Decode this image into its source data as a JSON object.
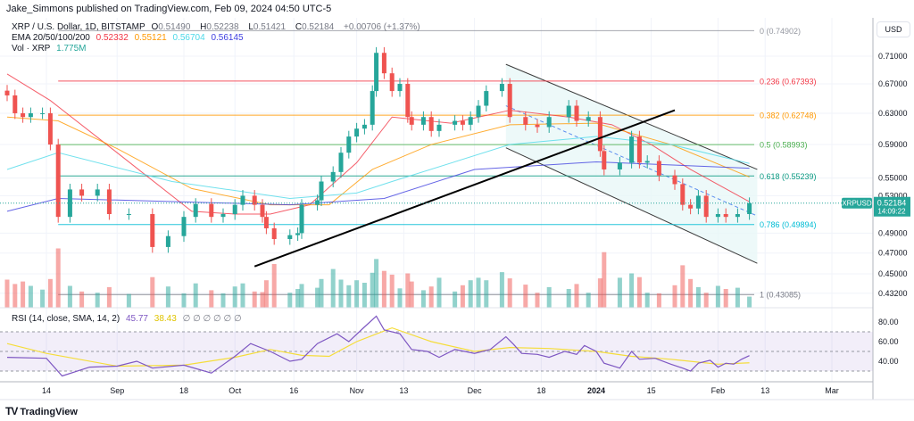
{
  "header": {
    "published": "Jake_Simmons published on TradingView.com, Feb 09, 2024 04:50 UTC-5",
    "symbol": "XRP / U.S. Dollar, 1D, BITSTAMP",
    "o_label": "O",
    "o": "0.51490",
    "h_label": "H",
    "h": "0.52238",
    "l_label": "L",
    "l": "0.51421",
    "c_label": "C",
    "c": "0.52184",
    "change": "+0.00706 (+1.37%)",
    "ema_label": "EMA 20/50/100/200",
    "ema20": "0.52332",
    "ema50": "0.55121",
    "ema100": "0.56704",
    "ema200": "0.56145",
    "vol_label": "Vol · XRP",
    "vol": "1.775M",
    "rsi_label": "RSI (14, close, SMA, 14, 2)",
    "rsi": "45.77",
    "rsi_sma": "38.43",
    "rsi_extra": "∅ ∅ ∅ ∅ ∅ ∅"
  },
  "price_axis": {
    "currency": "USD",
    "symbol_tag": "XRPUSD",
    "last_price": "0.52184",
    "countdown": "14:09:22"
  },
  "footer": {
    "brand": "TradingView",
    "brand_icon": "tradingview-logo-icon"
  },
  "colors": {
    "up": "#26a69a",
    "down": "#ef5350",
    "ema20": "#f23645",
    "ema50": "#ff9800",
    "ema100": "#4dd9e8",
    "ema200": "#3f3fe0",
    "rsi": "#7e57c2",
    "rsi_sma": "#f5dd3a",
    "channel_fill": "#e8f8f8"
  },
  "chart_data": {
    "type": "candlestick",
    "scale": "log",
    "ylim": [
      0.42,
      0.76
    ],
    "yticks": [
      "0.71000",
      "0.67000",
      "0.63000",
      "0.59000",
      "0.55000",
      "0.53000",
      "0.49000",
      "0.47000",
      "0.45000",
      "0.43200"
    ],
    "xticks": [
      {
        "label": "14",
        "date": "2023-08-14"
      },
      {
        "label": "Sep",
        "date": "2023-09-01"
      },
      {
        "label": "18",
        "date": "2023-09-18"
      },
      {
        "label": "Oct",
        "date": "2023-10-01"
      },
      {
        "label": "16",
        "date": "2023-10-16"
      },
      {
        "label": "Nov",
        "date": "2023-11-01"
      },
      {
        "label": "13",
        "date": "2023-11-13"
      },
      {
        "label": "Dec",
        "date": "2023-12-01"
      },
      {
        "label": "18",
        "date": "2023-12-18"
      },
      {
        "label": "2024",
        "date": "2024-01-01"
      },
      {
        "label": "15",
        "date": "2024-01-15"
      },
      {
        "label": "Feb",
        "date": "2024-02-01"
      },
      {
        "label": "13",
        "date": "2024-02-13"
      },
      {
        "label": "Mar",
        "date": "2024-03-01"
      }
    ],
    "candles": [
      [
        "2023-08-04",
        0.654,
        4.5
      ],
      [
        "2023-08-06",
        0.63,
        3.8
      ],
      [
        "2023-08-08",
        0.625,
        4.2
      ],
      [
        "2023-08-10",
        0.63,
        3.5
      ],
      [
        "2023-08-13",
        0.63,
        2.9
      ],
      [
        "2023-08-15",
        0.59,
        4.6
      ],
      [
        "2023-08-17",
        0.507,
        9.5
      ],
      [
        "2023-08-20",
        0.537,
        3.5
      ],
      [
        "2023-08-23",
        0.53,
        2.6
      ],
      [
        "2023-08-27",
        0.537,
        2.4
      ],
      [
        "2023-08-30",
        0.51,
        3.3
      ],
      [
        "2023-09-04",
        0.51,
        2.2
      ],
      [
        "2023-09-10",
        0.476,
        4.9
      ],
      [
        "2023-09-14",
        0.487,
        3.4
      ],
      [
        "2023-09-18",
        0.507,
        2.3
      ],
      [
        "2023-09-21",
        0.521,
        3.9
      ],
      [
        "2023-09-25",
        0.507,
        2.8
      ],
      [
        "2023-09-28",
        0.51,
        2.3
      ],
      [
        "2023-10-01",
        0.52,
        3.4
      ],
      [
        "2023-10-03",
        0.53,
        3.9
      ],
      [
        "2023-10-06",
        0.52,
        2.6
      ],
      [
        "2023-10-08",
        0.507,
        2.5
      ],
      [
        "2023-10-09",
        0.495,
        4.4
      ],
      [
        "2023-10-11",
        0.484,
        7.0
      ],
      [
        "2023-10-15",
        0.488,
        2.4
      ],
      [
        "2023-10-17",
        0.49,
        3.0
      ],
      [
        "2023-10-18",
        0.52,
        3.8
      ],
      [
        "2023-10-22",
        0.525,
        3.2
      ],
      [
        "2023-10-23",
        0.546,
        4.6
      ],
      [
        "2023-10-26",
        0.557,
        6.2
      ],
      [
        "2023-10-28",
        0.58,
        4.5
      ],
      [
        "2023-10-30",
        0.6,
        3.6
      ],
      [
        "2023-11-01",
        0.61,
        4.4
      ],
      [
        "2023-11-03",
        0.615,
        4.0
      ],
      [
        "2023-11-05",
        0.66,
        5.6
      ],
      [
        "2023-11-06",
        0.715,
        7.8
      ],
      [
        "2023-11-08",
        0.685,
        5.9
      ],
      [
        "2023-11-10",
        0.66,
        5.3
      ],
      [
        "2023-11-12",
        0.67,
        3.1
      ],
      [
        "2023-11-14",
        0.625,
        5.5
      ],
      [
        "2023-11-15",
        0.615,
        4.2
      ],
      [
        "2023-11-18",
        0.625,
        2.8
      ],
      [
        "2023-11-20",
        0.607,
        3.4
      ],
      [
        "2023-11-22",
        0.615,
        4.8
      ],
      [
        "2023-11-26",
        0.62,
        2.6
      ],
      [
        "2023-11-28",
        0.615,
        3.6
      ],
      [
        "2023-11-30",
        0.625,
        4.4
      ],
      [
        "2023-12-02",
        0.64,
        4.8
      ],
      [
        "2023-12-04",
        0.66,
        4.4
      ],
      [
        "2023-12-08",
        0.67,
        5.7
      ],
      [
        "2023-12-10",
        0.625,
        4.7
      ],
      [
        "2023-12-14",
        0.615,
        3.7
      ],
      [
        "2023-12-17",
        0.612,
        2.4
      ],
      [
        "2023-12-20",
        0.625,
        3.3
      ],
      [
        "2023-12-25",
        0.64,
        3.0
      ],
      [
        "2023-12-27",
        0.62,
        3.8
      ],
      [
        "2023-12-30",
        0.625,
        2.4
      ],
      [
        "2024-01-02",
        0.582,
        4.7
      ],
      [
        "2024-01-03",
        0.56,
        8.9
      ],
      [
        "2024-01-07",
        0.568,
        4.8
      ],
      [
        "2024-01-10",
        0.6,
        5.5
      ],
      [
        "2024-01-12",
        0.568,
        4.9
      ],
      [
        "2024-01-14",
        0.57,
        2.4
      ],
      [
        "2024-01-17",
        0.553,
        2.3
      ],
      [
        "2024-01-21",
        0.543,
        3.6
      ],
      [
        "2024-01-23",
        0.52,
        6.8
      ],
      [
        "2024-01-25",
        0.516,
        4.6
      ],
      [
        "2024-01-27",
        0.53,
        3.3
      ],
      [
        "2024-01-29",
        0.507,
        2.4
      ],
      [
        "2024-02-01",
        0.51,
        3.5
      ],
      [
        "2024-02-03",
        0.507,
        3.0
      ],
      [
        "2024-02-06",
        0.51,
        3.2
      ],
      [
        "2024-02-09",
        0.52184,
        1.775
      ]
    ],
    "volume_unit": "M",
    "ema": [
      {
        "name": "EMA 20",
        "color": "#f23645",
        "points": [
          [
            "2023-08-04",
            0.684
          ],
          [
            "2023-08-15",
            0.647
          ],
          [
            "2023-09-01",
            0.58
          ],
          [
            "2023-09-20",
            0.513
          ],
          [
            "2023-10-01",
            0.51
          ],
          [
            "2023-10-10",
            0.51
          ],
          [
            "2023-10-20",
            0.52
          ],
          [
            "2023-11-01",
            0.568
          ],
          [
            "2023-11-10",
            0.625
          ],
          [
            "2023-11-25",
            0.617
          ],
          [
            "2023-12-10",
            0.634
          ],
          [
            "2023-12-25",
            0.625
          ],
          [
            "2024-01-05",
            0.615
          ],
          [
            "2024-01-15",
            0.59
          ],
          [
            "2024-01-25",
            0.56
          ],
          [
            "2024-02-09",
            0.52332
          ]
        ]
      },
      {
        "name": "EMA 50",
        "color": "#ff9800",
        "points": [
          [
            "2023-08-04",
            0.625
          ],
          [
            "2023-08-17",
            0.62
          ],
          [
            "2023-09-01",
            0.585
          ],
          [
            "2023-09-20",
            0.538
          ],
          [
            "2023-10-10",
            0.52
          ],
          [
            "2023-10-25",
            0.52
          ],
          [
            "2023-11-05",
            0.56
          ],
          [
            "2023-11-20",
            0.59
          ],
          [
            "2023-12-10",
            0.615
          ],
          [
            "2024-01-01",
            0.617
          ],
          [
            "2024-01-20",
            0.59
          ],
          [
            "2024-02-09",
            0.55121
          ]
        ]
      },
      {
        "name": "EMA 100",
        "color": "#4dd9e8",
        "points": [
          [
            "2023-08-04",
            0.56
          ],
          [
            "2023-08-17",
            0.58
          ],
          [
            "2023-09-15",
            0.546
          ],
          [
            "2023-10-15",
            0.527
          ],
          [
            "2023-11-01",
            0.533
          ],
          [
            "2023-11-10",
            0.546
          ],
          [
            "2023-12-10",
            0.59
          ],
          [
            "2024-01-01",
            0.6
          ],
          [
            "2024-01-20",
            0.59
          ],
          [
            "2024-02-09",
            0.56704
          ]
        ]
      },
      {
        "name": "EMA 200",
        "color": "#3f3fe0",
        "points": [
          [
            "2023-08-04",
            0.513
          ],
          [
            "2023-08-17",
            0.527
          ],
          [
            "2023-10-15",
            0.52
          ],
          [
            "2023-11-08",
            0.527
          ],
          [
            "2023-12-01",
            0.56
          ],
          [
            "2024-01-01",
            0.569
          ],
          [
            "2024-02-09",
            0.56145
          ]
        ]
      }
    ],
    "fib_levels": [
      {
        "label": "0 (0.74902)",
        "value": 0.74902,
        "color": "#9598a1"
      },
      {
        "label": "0.236 (0.67393)",
        "value": 0.67393,
        "color": "#f23645"
      },
      {
        "label": "0.382 (0.62748)",
        "value": 0.62748,
        "color": "#ff9800"
      },
      {
        "label": "0.5 (0.58993)",
        "value": 0.58993,
        "color": "#4caf50"
      },
      {
        "label": "0.618 (0.55239)",
        "value": 0.55239,
        "color": "#089981"
      },
      {
        "label": "0.786 (0.49894)",
        "value": 0.49894,
        "color": "#00bcd4"
      },
      {
        "label": "1 (0.43085)",
        "value": 0.43085,
        "color": "#787b86"
      }
    ],
    "fib_start": "2023-08-17",
    "trendline": [
      [
        "2023-10-06",
        0.457
      ],
      [
        "2024-01-21",
        0.634
      ]
    ],
    "channel": {
      "upper": [
        [
          "2023-12-09",
          0.698
        ],
        [
          "2024-02-11",
          0.56
        ]
      ],
      "lower": [
        [
          "2023-12-09",
          0.586
        ],
        [
          "2024-02-11",
          0.46
        ]
      ],
      "mid": [
        [
          "2023-12-09",
          0.64
        ],
        [
          "2024-02-11",
          0.508
        ]
      ]
    },
    "rsi": {
      "yticks": [
        "80.00",
        "60.00",
        "40.00"
      ],
      "bands": [
        30,
        50,
        70
      ],
      "values": [
        [
          "2023-08-04",
          44
        ],
        [
          "2023-08-14",
          43
        ],
        [
          "2023-08-18",
          25
        ],
        [
          "2023-08-25",
          34
        ],
        [
          "2023-09-01",
          35
        ],
        [
          "2023-09-06",
          40
        ],
        [
          "2023-09-10",
          33
        ],
        [
          "2023-09-18",
          36
        ],
        [
          "2023-09-25",
          28
        ],
        [
          "2023-10-01",
          45
        ],
        [
          "2023-10-05",
          58
        ],
        [
          "2023-10-10",
          50
        ],
        [
          "2023-10-15",
          40
        ],
        [
          "2023-10-18",
          42
        ],
        [
          "2023-10-22",
          58
        ],
        [
          "2023-10-27",
          68
        ],
        [
          "2023-10-30",
          60
        ],
        [
          "2023-11-03",
          75
        ],
        [
          "2023-11-06",
          86
        ],
        [
          "2023-11-08",
          72
        ],
        [
          "2023-11-12",
          68
        ],
        [
          "2023-11-15",
          52
        ],
        [
          "2023-11-19",
          50
        ],
        [
          "2023-11-22",
          44
        ],
        [
          "2023-11-26",
          52
        ],
        [
          "2023-12-01",
          48
        ],
        [
          "2023-12-05",
          52
        ],
        [
          "2023-12-09",
          65
        ],
        [
          "2023-12-11",
          57
        ],
        [
          "2023-12-13",
          48
        ],
        [
          "2023-12-17",
          47
        ],
        [
          "2023-12-20",
          44
        ],
        [
          "2023-12-24",
          50
        ],
        [
          "2023-12-27",
          47
        ],
        [
          "2023-12-29",
          56
        ],
        [
          "2024-01-01",
          50
        ],
        [
          "2024-01-03",
          38
        ],
        [
          "2024-01-07",
          33
        ],
        [
          "2024-01-10",
          50
        ],
        [
          "2024-01-12",
          42
        ],
        [
          "2024-01-16",
          43
        ],
        [
          "2024-01-20",
          37
        ],
        [
          "2024-01-23",
          33
        ],
        [
          "2024-01-25",
          30
        ],
        [
          "2024-01-27",
          38
        ],
        [
          "2024-01-30",
          41
        ],
        [
          "2024-02-01",
          34
        ],
        [
          "2024-02-03",
          38
        ],
        [
          "2024-02-05",
          37
        ],
        [
          "2024-02-07",
          42
        ],
        [
          "2024-02-09",
          45.77
        ]
      ],
      "sma": [
        [
          "2023-08-04",
          58
        ],
        [
          "2023-08-14",
          48
        ],
        [
          "2023-09-01",
          35
        ],
        [
          "2023-09-18",
          36
        ],
        [
          "2023-10-01",
          44
        ],
        [
          "2023-10-10",
          52
        ],
        [
          "2023-10-18",
          46
        ],
        [
          "2023-10-25",
          45
        ],
        [
          "2023-11-01",
          60
        ],
        [
          "2023-11-10",
          74
        ],
        [
          "2023-11-20",
          60
        ],
        [
          "2023-12-01",
          50
        ],
        [
          "2023-12-10",
          54
        ],
        [
          "2023-12-20",
          53
        ],
        [
          "2024-01-01",
          50
        ],
        [
          "2024-01-10",
          45
        ],
        [
          "2024-01-20",
          42
        ],
        [
          "2024-02-01",
          37
        ],
        [
          "2024-02-09",
          38.43
        ]
      ]
    }
  }
}
